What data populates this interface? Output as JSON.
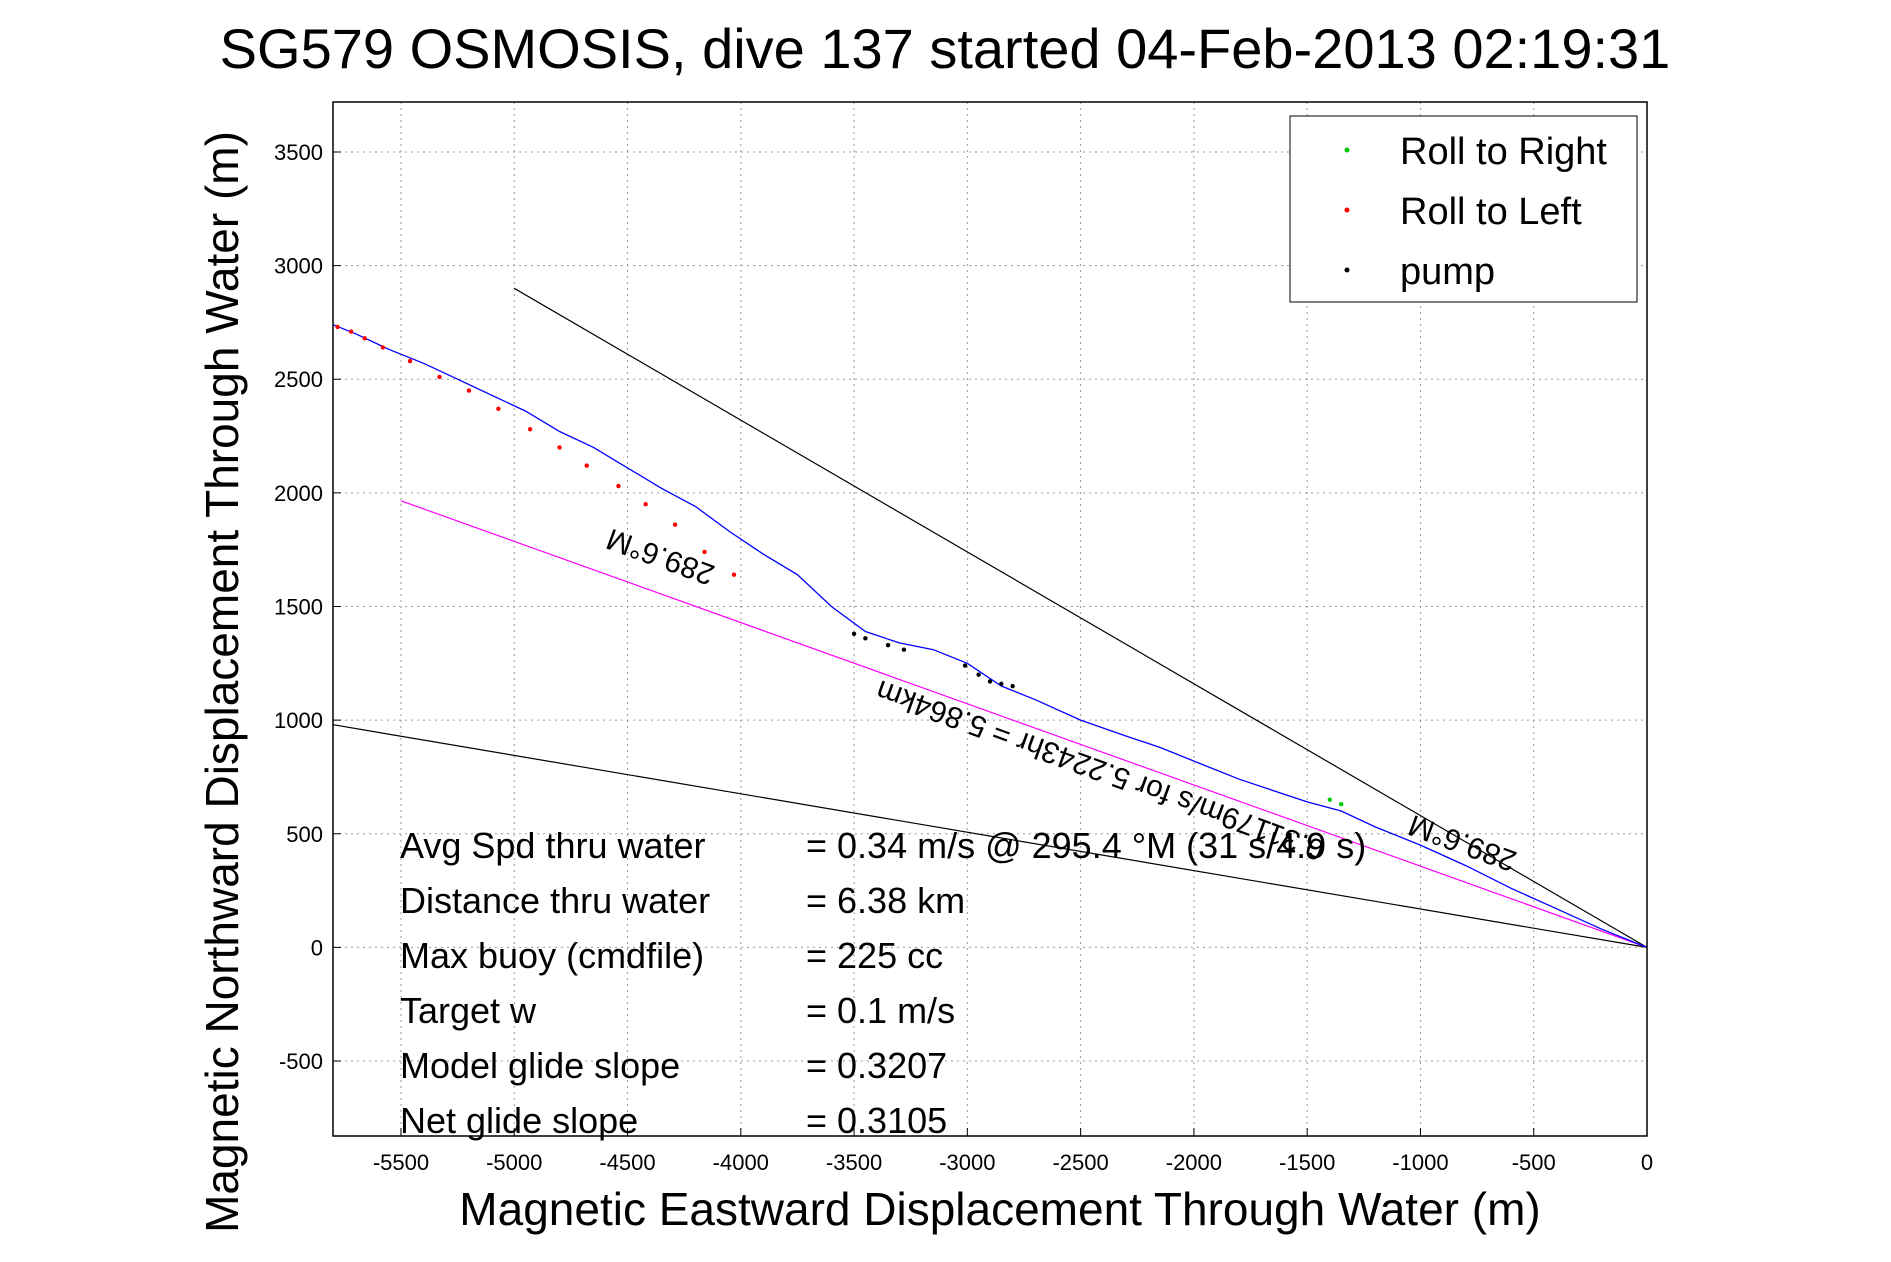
{
  "chart_data": {
    "type": "line",
    "title": "SG579 OSMOSIS, dive 137 started 04-Feb-2013 02:19:31",
    "xlabel": "Magnetic Eastward Displacement Through Water (m)",
    "ylabel": "Magnetic Northward Displacement Through Water (m)",
    "xlim": [
      -5800,
      0
    ],
    "ylim": [
      -830,
      3720
    ],
    "xticks": [
      -5500,
      -5000,
      -4500,
      -4000,
      -3500,
      -3000,
      -2500,
      -2000,
      -1500,
      -1000,
      -500,
      0
    ],
    "yticks": [
      -500,
      0,
      500,
      1000,
      1500,
      2000,
      2500,
      3000,
      3500
    ],
    "grid": true,
    "legend_position": "top-right",
    "legend": [
      {
        "label": "Roll to Right",
        "color": "#00cc00"
      },
      {
        "label": "Roll to Left",
        "color": "#ff0000"
      },
      {
        "label": "pump",
        "color": "#000000"
      }
    ],
    "track": {
      "color": "#0000ff",
      "x": [
        -5800,
        -5700,
        -5550,
        -5400,
        -5250,
        -5100,
        -4950,
        -4800,
        -4650,
        -4500,
        -4350,
        -4200,
        -4050,
        -3900,
        -3750,
        -3600,
        -3450,
        -3300,
        -3150,
        -3000,
        -2850,
        -2700,
        -2500,
        -2300,
        -2150,
        -1950,
        -1800,
        -1650,
        -1500,
        -1350,
        -1200,
        -1000,
        -800,
        -600,
        -400,
        -200,
        0
      ],
      "y": [
        2740,
        2700,
        2630,
        2570,
        2500,
        2430,
        2360,
        2270,
        2200,
        2110,
        2020,
        1940,
        1830,
        1730,
        1640,
        1500,
        1390,
        1340,
        1310,
        1250,
        1150,
        1090,
        1000,
        930,
        880,
        800,
        740,
        690,
        640,
        600,
        530,
        450,
        360,
        260,
        170,
        80,
        0
      ]
    },
    "markers": {
      "roll_left": {
        "x": [
          -5780,
          -5720,
          -5660,
          -5580,
          -5460,
          -5330,
          -5200,
          -5070,
          -4930,
          -4800,
          -4680,
          -4540,
          -4420,
          -4290,
          -4160,
          -4030
        ],
        "y": [
          2730,
          2710,
          2680,
          2640,
          2580,
          2510,
          2450,
          2370,
          2280,
          2200,
          2120,
          2030,
          1950,
          1860,
          1740,
          1640
        ]
      },
      "roll_right": {
        "x": [
          -1350,
          -1400
        ],
        "y": [
          630,
          650
        ]
      },
      "pump": {
        "x": [
          -3500,
          -3450,
          -3350,
          -3280,
          -3010,
          -2950,
          -2900,
          -2850,
          -2800
        ],
        "y": [
          1380,
          1360,
          1330,
          1310,
          1240,
          1200,
          1170,
          1160,
          1150
        ]
      }
    },
    "heading_line": {
      "color": "#ff00ff",
      "x": [
        -5500,
        0
      ],
      "y": [
        1965,
        0
      ]
    },
    "bounds_lines": [
      {
        "color": "#000000",
        "x": [
          -5000,
          0
        ],
        "y": [
          2900,
          0
        ]
      },
      {
        "color": "#000000",
        "x": [
          -5800,
          0
        ],
        "y": [
          980,
          0
        ]
      }
    ],
    "annotations": [
      {
        "text": "289.6°M",
        "x": -4340,
        "y": 1760,
        "angle": 200
      },
      {
        "text": "289.6°M",
        "x": -800,
        "y": 500,
        "angle": 200
      },
      {
        "text": "0.31179m/s for 5.2243hr = 5.864km",
        "x": -2400,
        "y": 820,
        "angle": 200
      }
    ],
    "stats": [
      {
        "label": "Avg Spd thru water",
        "value": "=  0.34 m/s @ 295.4 °M (31 s/4.9 s)"
      },
      {
        "label": "Distance thru water",
        "value": "=  6.38 km"
      },
      {
        "label": "Max buoy (cmdfile)",
        "value": "= 225 cc"
      },
      {
        "label": "Target w",
        "value": "= 0.1 m/s"
      },
      {
        "label": "Model glide slope",
        "value": "= 0.3207"
      },
      {
        "label": "Net glide slope",
        "value": "= 0.3105"
      }
    ]
  }
}
